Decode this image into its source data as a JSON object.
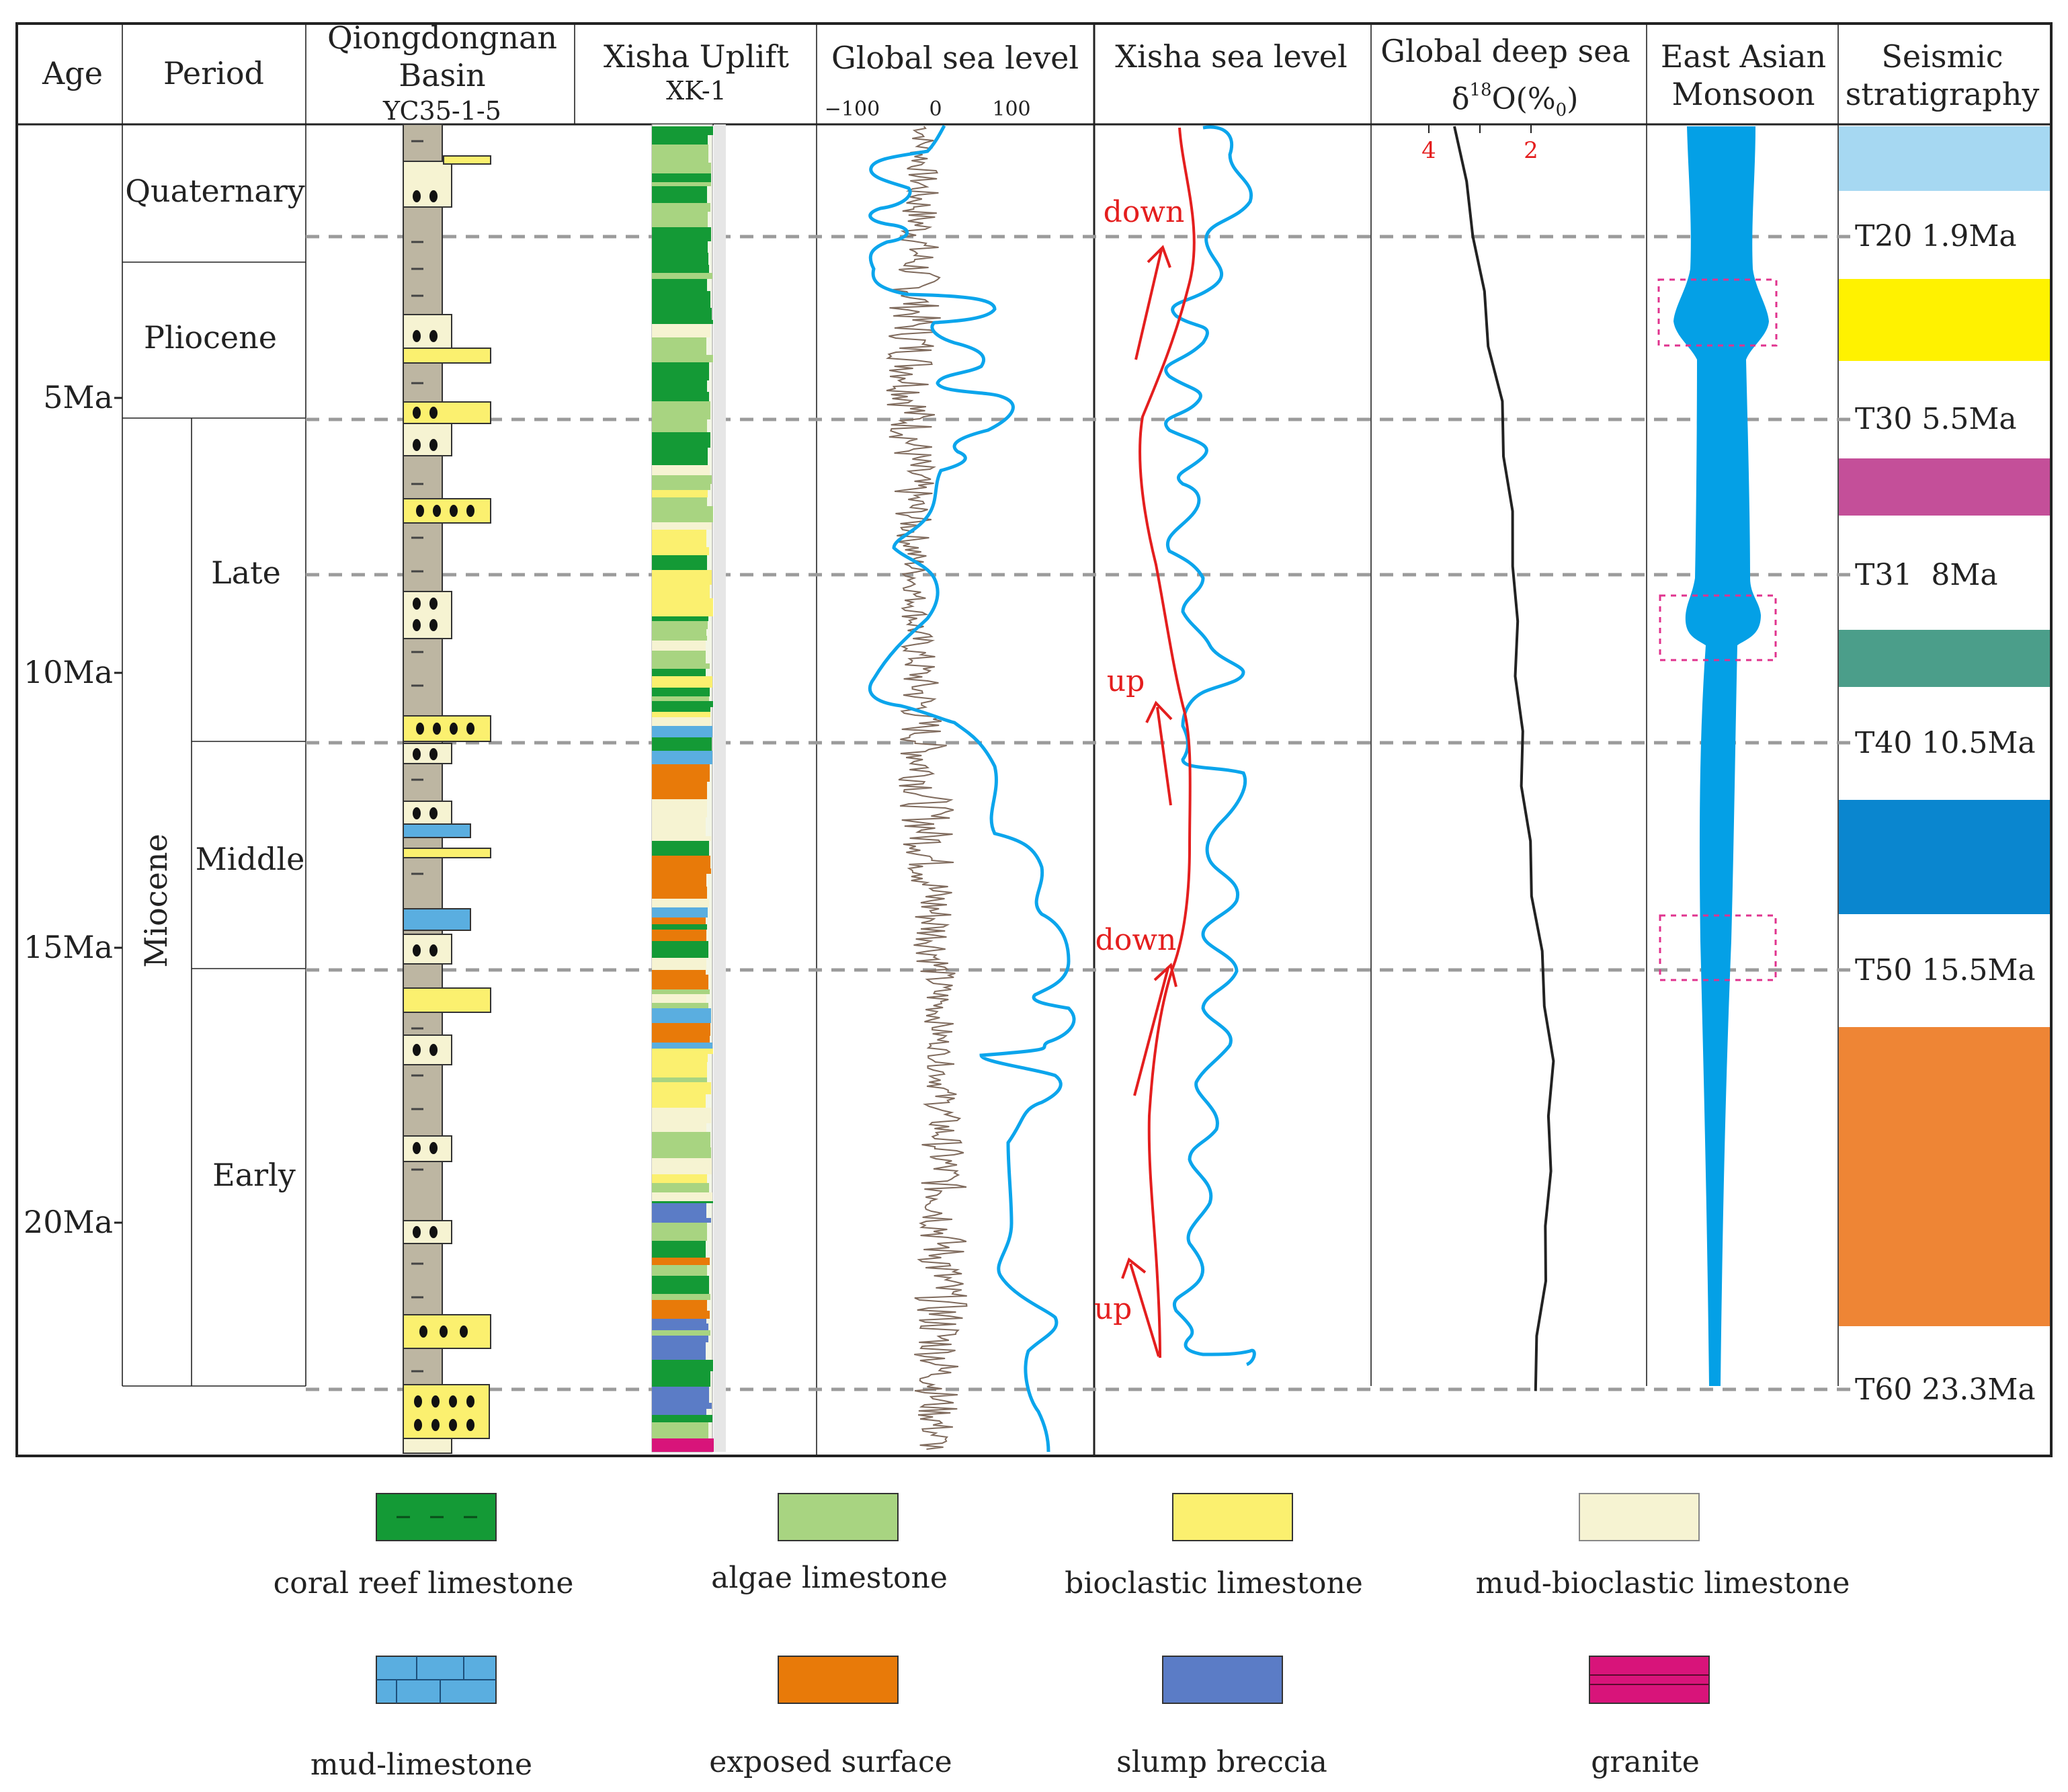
{
  "headers": {
    "age": "Age",
    "period": "Period",
    "qdn_line1": "Qiongdongnan",
    "qdn_line2": "Basin",
    "qdn_well": "YC35-1-5",
    "xisha_uplift": "Xisha Uplift",
    "xisha_well": "XK-1",
    "gsl": "Global sea level",
    "xsl": "Xisha sea level",
    "deep_sea": "Global deep sea",
    "monsoon_line1": "East Asian",
    "monsoon_line2": "Monsoon",
    "seis_line1": "Seismic",
    "seis_line2": "stratigraphy"
  },
  "age_labels": [
    "5Ma",
    "10Ma",
    "15Ma",
    "20Ma"
  ],
  "periods": {
    "quaternary": "Quaternary",
    "pliocene": "Pliocene",
    "miocene": "Miocene",
    "late": "Late",
    "middle": "Middle",
    "early": "Early"
  },
  "gsl_ticks": [
    "−100",
    "0",
    "100"
  ],
  "d18o": {
    "label_delta": "δ",
    "label_sup": "18",
    "label_rest": "O(%",
    "label_sub": "0",
    "label_close": ")",
    "tick_4": "4",
    "tick_2": "2",
    "curve": [
      {
        "age": 0.0,
        "value": 3.5
      },
      {
        "age": 1.0,
        "value": 3.3
      },
      {
        "age": 2.0,
        "value": 3.1
      },
      {
        "age": 3.0,
        "value": 2.95
      },
      {
        "age": 4.0,
        "value": 2.8
      },
      {
        "age": 5.0,
        "value": 2.6
      },
      {
        "age": 6.0,
        "value": 2.5
      },
      {
        "age": 7.0,
        "value": 2.4
      },
      {
        "age": 8.0,
        "value": 2.32
      },
      {
        "age": 9.0,
        "value": 2.3
      },
      {
        "age": 10.0,
        "value": 2.27
      },
      {
        "age": 11.0,
        "value": 2.2
      },
      {
        "age": 12.0,
        "value": 2.15
      },
      {
        "age": 13.0,
        "value": 2.05
      },
      {
        "age": 14.0,
        "value": 1.95
      },
      {
        "age": 15.0,
        "value": 1.82
      },
      {
        "age": 16.0,
        "value": 1.7
      },
      {
        "age": 17.0,
        "value": 1.6
      },
      {
        "age": 18.0,
        "value": 1.62
      },
      {
        "age": 19.0,
        "value": 1.65
      },
      {
        "age": 20.0,
        "value": 1.68
      },
      {
        "age": 21.0,
        "value": 1.75
      },
      {
        "age": 22.0,
        "value": 1.85
      },
      {
        "age": 23.0,
        "value": 1.95
      }
    ]
  },
  "xisha_arrows": {
    "down1": "down",
    "up1": "up",
    "down2": "down",
    "up2": "up"
  },
  "seismic": [
    {
      "name": "T20",
      "age": "1.9Ma",
      "color": "#a6d8f2"
    },
    {
      "name": "T30",
      "age": "5.5Ma",
      "color": "#fff200"
    },
    {
      "name": "T31",
      "age": "8Ma",
      "color": "#c44f99"
    },
    {
      "name": "T40",
      "age": "10.5Ma",
      "color": "#4b9e8a"
    },
    {
      "name": "T50",
      "age": "15.5Ma",
      "color": "#0a86cf"
    },
    {
      "name": "T60",
      "age": "23.3Ma",
      "color": "#ee8535"
    }
  ],
  "legend": [
    {
      "label": "coral reef limestone",
      "color": "#149a36"
    },
    {
      "label": "algae limestone",
      "color": "#a8d481"
    },
    {
      "label": "bioclastic limestone",
      "color": "#fbf06f"
    },
    {
      "label": "mud-bioclastic limestone",
      "color": "#f6f3d2"
    },
    {
      "label": "mud-limestone",
      "color": "#5aaee0"
    },
    {
      "label": "exposed surface",
      "color": "#e87a09"
    },
    {
      "label": "slump breccia",
      "color": "#5b7cc6"
    },
    {
      "label": "granite",
      "color": "#d8147a"
    }
  ],
  "colors": {
    "frame": "#222222",
    "dash": "#9b9b9b",
    "blue_curve": "#0ba5ec",
    "red_trend": "#e41e1e",
    "noisy_curve": "#7f6a5c",
    "mudstone": "#bdb6a2",
    "monsoon": "#04a0e6",
    "pink_box": "#e0338e"
  }
}
